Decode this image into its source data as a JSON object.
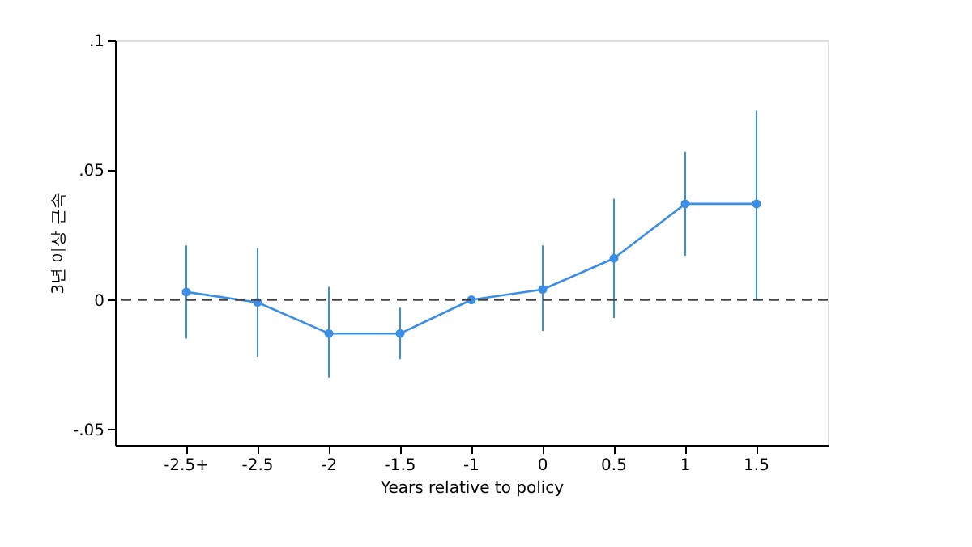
{
  "chart_data": {
    "type": "line",
    "xlabel": "Years relative to policy",
    "ylabel": "3년 이상 근속",
    "categories": [
      "-2.5+",
      "-2.5",
      "-2",
      "-1.5",
      "-1",
      "0",
      "0.5",
      "1",
      "1.5"
    ],
    "series": [
      {
        "color": "#3a8ee6",
        "values": [
          0.003,
          -0.001,
          -0.013,
          -0.013,
          0,
          0.004,
          0.016,
          0.037,
          0.037
        ],
        "errors": [
          [
            -0.015,
            0.021
          ],
          [
            -0.022,
            0.02
          ],
          [
            -0.03,
            0.005
          ],
          [
            -0.023,
            -0.003
          ],
          null,
          [
            -0.012,
            0.021
          ],
          [
            -0.007,
            0.039
          ],
          [
            0.017,
            0.057
          ],
          [
            0,
            0.073
          ]
        ]
      }
    ],
    "marker": "circle",
    "line_style": "solid",
    "ylim": [
      -0.056,
      0.1
    ],
    "yticks": [
      {
        "value": -0.05,
        "label": "-.05"
      },
      0,
      {
        "value": 0.05,
        "label": ".05"
      },
      {
        "value": 0.1,
        "label": ".1"
      }
    ],
    "ref_lines": [
      {
        "axis": "y",
        "value": 0,
        "color": "#444444",
        "line_style": "dashed"
      }
    ],
    "grid": false
  }
}
